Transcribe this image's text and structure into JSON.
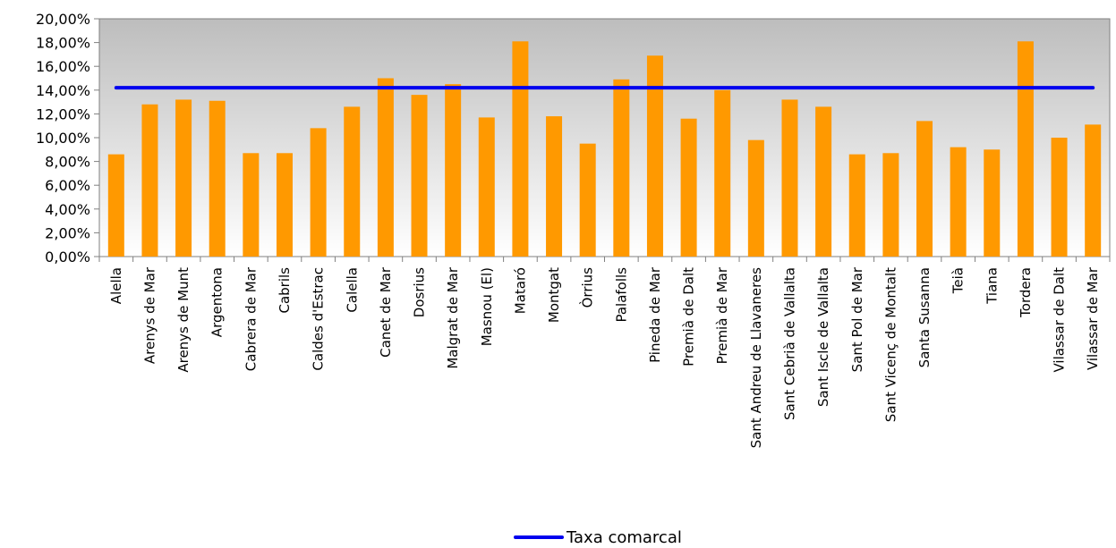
{
  "chart_data": {
    "type": "bar",
    "categories": [
      "Alella",
      "Arenys de Mar",
      "Arenys de Munt",
      "Argentona",
      "Cabrera de Mar",
      "Cabrils",
      "Caldes d'Estrac",
      "Calella",
      "Canet de Mar",
      "Dosrius",
      "Malgrat de Mar",
      "Masnou (El)",
      "Mataró",
      "Montgat",
      "Òrrius",
      "Palafolls",
      "Pineda de Mar",
      "Premià de Dalt",
      "Premià de Mar",
      "Sant Andreu de Llavaneres",
      "Sant Cebrià de Vallalta",
      "Sant Iscle de Vallalta",
      "Sant Pol de Mar",
      "Sant Vicenç de Montalt",
      "Santa Susanna",
      "Teià",
      "Tiana",
      "Tordera",
      "Vilassar de Dalt",
      "Vilassar de Mar"
    ],
    "series": [
      {
        "values": [
          8.6,
          12.8,
          13.2,
          13.1,
          8.7,
          8.7,
          10.8,
          12.6,
          15.0,
          13.6,
          14.5,
          11.7,
          18.1,
          11.8,
          9.5,
          14.9,
          16.9,
          11.6,
          14.0,
          9.8,
          13.2,
          12.6,
          8.6,
          8.7,
          11.4,
          9.2,
          9.0,
          18.1,
          10.0,
          11.1
        ],
        "color": "#FF9900"
      },
      {
        "name": "Taxa comarcal",
        "type": "line",
        "value": 14.2,
        "color": "#0000EE"
      }
    ],
    "y_ticks": [
      "0,00%",
      "2,00%",
      "4,00%",
      "6,00%",
      "8,00%",
      "10,00%",
      "12,00%",
      "14,00%",
      "16,00%",
      "18,00%",
      "20,00%"
    ],
    "ylim": [
      0,
      20
    ],
    "y_unit": "%",
    "background": "gradient gray to white",
    "legend_position": "bottom-center"
  },
  "legend": {
    "label": "Taxa comarcal"
  }
}
